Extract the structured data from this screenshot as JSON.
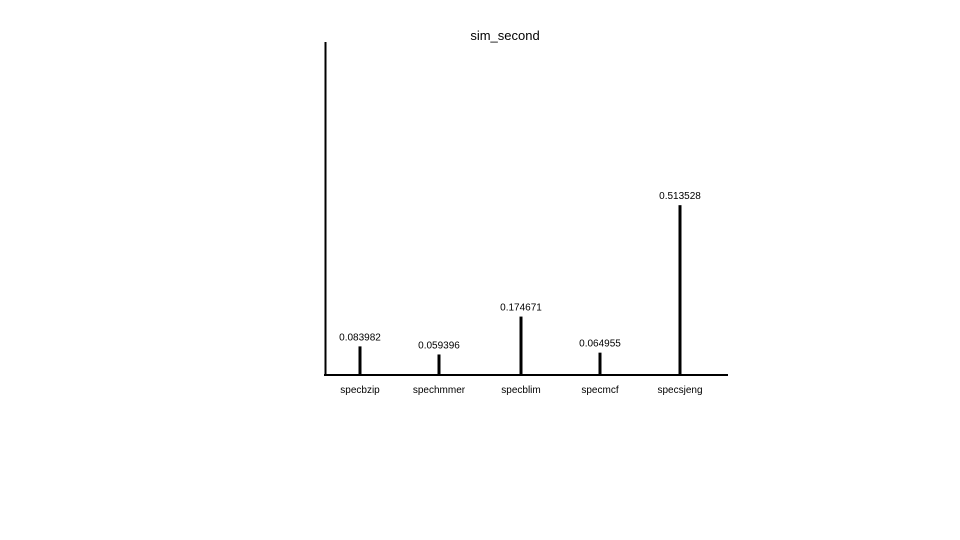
{
  "chart_data": {
    "type": "bar",
    "title": "sim_second",
    "xlabel": "",
    "ylabel": "",
    "categories": [
      "specbzip",
      "spechmmer",
      "specblim",
      "specmcf",
      "specsjeng"
    ],
    "values": [
      0.083982,
      0.059396,
      0.174671,
      0.064955,
      0.513528
    ],
    "value_labels": [
      "0.083982",
      "0.059396",
      "0.174671",
      "0.064955",
      "0.513528"
    ],
    "ylim": [
      0,
      0.73
    ],
    "grid": false,
    "legend": "none",
    "bar_color": "#000000"
  }
}
